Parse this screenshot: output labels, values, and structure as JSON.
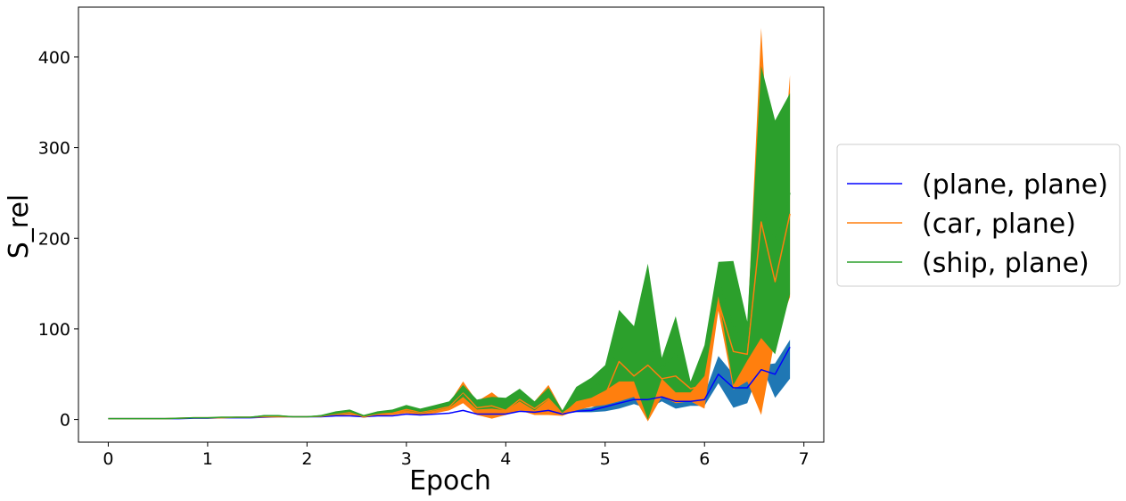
{
  "chart_data": {
    "type": "line",
    "xlabel": "Epoch",
    "ylabel": "S_rel",
    "xlim": [
      -0.3,
      7.2
    ],
    "ylim": [
      -25,
      455
    ],
    "x_ticks": [
      0,
      1,
      2,
      3,
      4,
      5,
      6,
      7
    ],
    "y_ticks": [
      0,
      100,
      200,
      300,
      400
    ],
    "x_tick_labels": [
      "0",
      "1",
      "2",
      "3",
      "4",
      "5",
      "6",
      "7"
    ],
    "y_tick_labels": [
      "0",
      "100",
      "200",
      "300",
      "400"
    ],
    "grid": false,
    "legend_position": "right",
    "x": [
      0,
      0.14,
      0.29,
      0.43,
      0.57,
      0.71,
      0.86,
      1.0,
      1.14,
      1.29,
      1.43,
      1.57,
      1.71,
      1.86,
      2.0,
      2.14,
      2.29,
      2.43,
      2.57,
      2.71,
      2.86,
      3.0,
      3.14,
      3.29,
      3.43,
      3.57,
      3.71,
      3.86,
      4.0,
      4.14,
      4.29,
      4.43,
      4.57,
      4.71,
      4.86,
      5.0,
      5.14,
      5.29,
      5.43,
      5.57,
      5.71,
      5.86,
      6.0,
      6.14,
      6.29,
      6.43,
      6.57,
      6.71,
      6.86
    ],
    "series": [
      {
        "name": "(plane, plane)",
        "color": "#0000ff",
        "band_color": "#1f77b4",
        "values": [
          1,
          1,
          1,
          1,
          1,
          1,
          1.5,
          1.5,
          2,
          2,
          2,
          2.5,
          3,
          3,
          3,
          3,
          4,
          4,
          3,
          4,
          4,
          6,
          5,
          6,
          7,
          10,
          6,
          6,
          6,
          9,
          8,
          10,
          6,
          9,
          10,
          14,
          18,
          22,
          22,
          25,
          20,
          20,
          22,
          50,
          35,
          35,
          55,
          50,
          80
        ],
        "lower": [
          1,
          1,
          1,
          1,
          1,
          1,
          1.5,
          1.5,
          2,
          2,
          2,
          2.5,
          3,
          3,
          3,
          3,
          4,
          4,
          3,
          4,
          4,
          6,
          5,
          6,
          7,
          10,
          6,
          6,
          6,
          9,
          8,
          8,
          6,
          8,
          8,
          9,
          12,
          17,
          12,
          20,
          12,
          15,
          15,
          40,
          13,
          18,
          60,
          24,
          45
        ],
        "upper": [
          1,
          1,
          1,
          1,
          1,
          1,
          1.5,
          1.5,
          2,
          2,
          2,
          2.5,
          3,
          3,
          3,
          3,
          4,
          4,
          3,
          4,
          4,
          6,
          5,
          6,
          7,
          10,
          6,
          6,
          6,
          9,
          8,
          12,
          6,
          11,
          13,
          19,
          24,
          35,
          30,
          30,
          28,
          25,
          28,
          70,
          50,
          45,
          60,
          62,
          88
        ]
      },
      {
        "name": "(car, plane)",
        "color": "#ff7f0e",
        "band_color": "#ff7f0e",
        "values": [
          1,
          1,
          1,
          1,
          1,
          1.5,
          2,
          2,
          2,
          2.5,
          2.5,
          3,
          3,
          3,
          3,
          3.5,
          6,
          8,
          3,
          6,
          7,
          11,
          8,
          11,
          14,
          30,
          13,
          15,
          10,
          22,
          12,
          23,
          7,
          17,
          22,
          27,
          64,
          48,
          60,
          45,
          48,
          34,
          38,
          130,
          75,
          72,
          218,
          152,
          227
        ],
        "lower": [
          1,
          1,
          1,
          1,
          1,
          1,
          1.5,
          1.5,
          2,
          2,
          2,
          2.5,
          2.5,
          2.5,
          2.5,
          3,
          4,
          5,
          2,
          4,
          5,
          7,
          5,
          7,
          10,
          18,
          5,
          1,
          5,
          10,
          5,
          5,
          4,
          10,
          14,
          16,
          20,
          25,
          -2,
          25,
          18,
          20,
          12,
          120,
          33,
          42,
          5,
          90,
          135
        ],
        "upper": [
          1,
          1,
          1,
          1,
          1,
          1.5,
          2,
          2,
          2,
          2.5,
          2.5,
          4,
          4,
          3.5,
          3.5,
          4,
          7,
          10,
          4,
          8,
          9,
          14,
          10,
          14,
          18,
          42,
          20,
          30,
          18,
          32,
          20,
          38,
          10,
          22,
          30,
          38,
          70,
          70,
          62,
          60,
          55,
          42,
          50,
          150,
          110,
          100,
          432,
          170,
          380
        ]
      },
      {
        "name": "(ship, plane)",
        "color": "#2ca02c",
        "band_color": "#2ca02c",
        "values": [
          1,
          1,
          1,
          1,
          1,
          1.5,
          2,
          2,
          2.5,
          2.5,
          2.5,
          4,
          4,
          3,
          3,
          4,
          7,
          9,
          4,
          7,
          9,
          13,
          9,
          12,
          16,
          31,
          17,
          18,
          17,
          27,
          15,
          28,
          8,
          28,
          35,
          42,
          81,
          73,
          86,
          56,
          73,
          37,
          62,
          155,
          103,
          85,
          242,
          198,
          250
        ],
        "lower": [
          1,
          1,
          1,
          1,
          1,
          1,
          1.5,
          1.5,
          2,
          2,
          2,
          3,
          3,
          2.5,
          2.5,
          3,
          5,
          7,
          3,
          6,
          7,
          10,
          7,
          10,
          13,
          25,
          11,
          12,
          10,
          20,
          10,
          22,
          6,
          20,
          24,
          32,
          42,
          42,
          0,
          45,
          30,
          30,
          48,
          136,
          38,
          65,
          90,
          72,
          138
        ],
        "upper": [
          1,
          1,
          1,
          1,
          1,
          1.5,
          2,
          2,
          3,
          3,
          3,
          5,
          5,
          3.5,
          3.5,
          5,
          9,
          11,
          5,
          9,
          11,
          16,
          12,
          16,
          20,
          38,
          22,
          25,
          24,
          34,
          20,
          35,
          10,
          36,
          46,
          60,
          121,
          103,
          172,
          68,
          114,
          42,
          82,
          174,
          175,
          108,
          390,
          330,
          360
        ]
      }
    ]
  }
}
